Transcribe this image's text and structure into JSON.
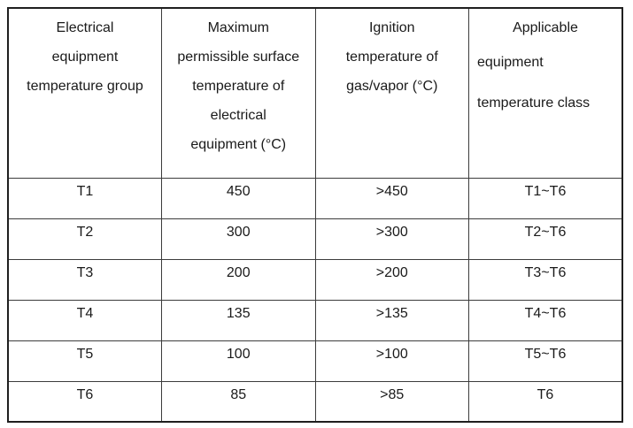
{
  "colors": {
    "background": "#ffffff",
    "border_outer": "#1f1f1f",
    "border_inner": "#3c3c3c",
    "text": "#1a1a1a"
  },
  "table": {
    "headers": [
      [
        "Electrical",
        "equipment",
        "temperature group"
      ],
      [
        "Maximum",
        "permissible surface",
        "temperature of",
        "electrical",
        "equipment (°C)"
      ],
      [
        "Ignition",
        "temperature of",
        "gas/vapor (°C)"
      ],
      [
        "Applicable",
        "equipment",
        "temperature class"
      ]
    ],
    "rows": [
      [
        "T1",
        "450",
        ">450",
        "T1~T6"
      ],
      [
        "T2",
        "300",
        ">300",
        "T2~T6"
      ],
      [
        "T3",
        "200",
        ">200",
        "T3~T6"
      ],
      [
        "T4",
        "135",
        ">135",
        "T4~T6"
      ],
      [
        "T5",
        "100",
        ">100",
        "T5~T6"
      ],
      [
        "T6",
        "85",
        ">85",
        "T6"
      ]
    ]
  }
}
